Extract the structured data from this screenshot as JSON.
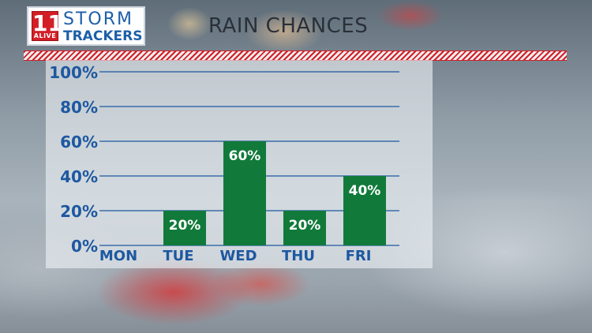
{
  "header": {
    "logo_number": "11",
    "logo_alive": "ALIVE",
    "logo_storm": "STORM",
    "logo_trackers": "TRACKERS",
    "title": "RAIN CHANCES"
  },
  "colors": {
    "bar": "#117a3a",
    "axis_text": "#1e58a0",
    "gridline": "#1e58a0",
    "stripe": "#d31e26"
  },
  "chart_data": {
    "type": "bar",
    "title": "RAIN CHANCES",
    "categories": [
      "MON",
      "TUE",
      "WED",
      "THU",
      "FRI"
    ],
    "values": [
      0,
      20,
      60,
      20,
      40
    ],
    "data_labels": [
      "",
      "20%",
      "60%",
      "20%",
      "40%"
    ],
    "ylim": [
      0,
      100
    ],
    "yticks": [
      0,
      20,
      40,
      60,
      80,
      100
    ],
    "ytick_labels": [
      "0%",
      "20%",
      "40%",
      "60%",
      "80%",
      "100%"
    ],
    "grid": true,
    "legend": "none"
  }
}
